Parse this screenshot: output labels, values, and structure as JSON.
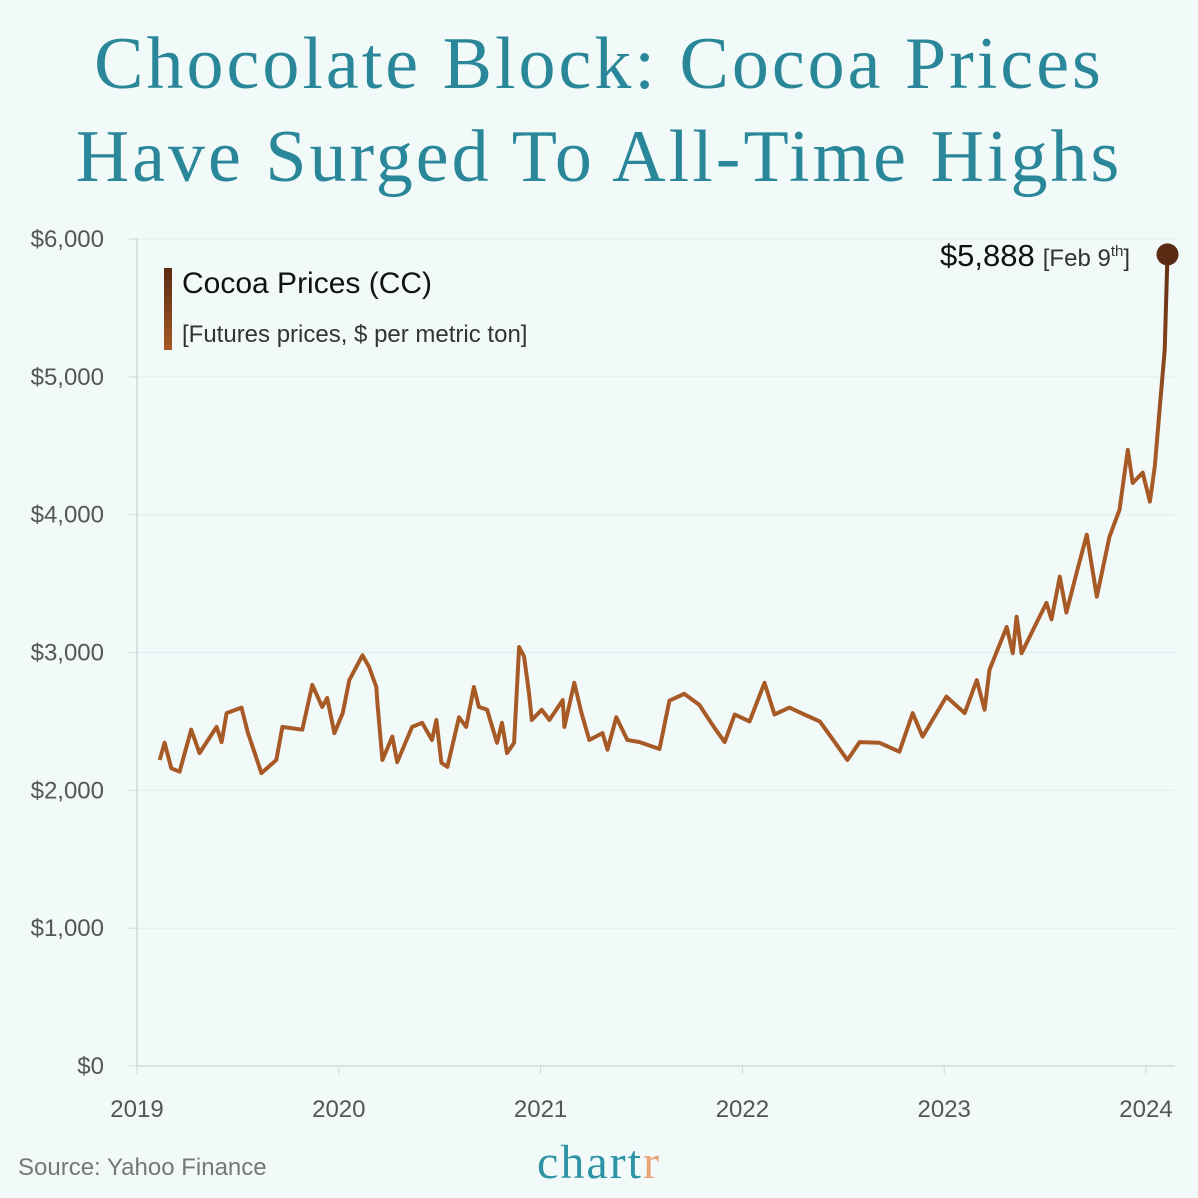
{
  "title_lines": [
    "Chocolate Block: Cocoa Prices",
    "Have Surged To All-Time Highs"
  ],
  "legend": {
    "label": "Cocoa Prices (CC)",
    "sublabel": "[Futures prices, $ per metric ton]"
  },
  "annotation": {
    "value": "$5,888",
    "date_prefix": "[Feb 9",
    "date_sup": "th",
    "date_suffix": "]"
  },
  "source": "Source: Yahoo Finance",
  "logo": {
    "main": "chart",
    "accent": "r"
  },
  "colors": {
    "background": "#f1faf9",
    "title": "#2a8799",
    "line": "#a85a26",
    "line_top": "#5a2a12",
    "logo": "#2f93a6",
    "logo_accent": "#e8a27a"
  },
  "chart_data": {
    "type": "line",
    "title": "Chocolate Block: Cocoa Prices Have Surged To All-Time Highs",
    "xlabel": "",
    "ylabel": "",
    "ylim": [
      0,
      6000
    ],
    "xlim": [
      "2019-01-01",
      "2024-02-20"
    ],
    "y_ticks": [
      "$0",
      "$1,000",
      "$2,000",
      "$3,000",
      "$4,000",
      "$5,000",
      "$6,000"
    ],
    "x_ticks": [
      "2019",
      "2020",
      "2021",
      "2022",
      "2023",
      "2024"
    ],
    "grid": "horizontal",
    "legend_position": "top-left",
    "series": [
      {
        "name": "Cocoa Prices (CC)",
        "points": [
          [
            "2019-02-11",
            2220
          ],
          [
            "2019-02-20",
            2345
          ],
          [
            "2019-03-04",
            2160
          ],
          [
            "2019-03-19",
            2135
          ],
          [
            "2019-04-09",
            2440
          ],
          [
            "2019-04-24",
            2270
          ],
          [
            "2019-05-25",
            2460
          ],
          [
            "2019-06-03",
            2350
          ],
          [
            "2019-06-12",
            2560
          ],
          [
            "2019-07-09",
            2600
          ],
          [
            "2019-07-20",
            2425
          ],
          [
            "2019-08-14",
            2125
          ],
          [
            "2019-09-10",
            2220
          ],
          [
            "2019-09-21",
            2460
          ],
          [
            "2019-10-27",
            2440
          ],
          [
            "2019-11-14",
            2765
          ],
          [
            "2019-12-02",
            2605
          ],
          [
            "2019-12-11",
            2670
          ],
          [
            "2019-12-24",
            2415
          ],
          [
            "2020-01-08",
            2560
          ],
          [
            "2020-01-20",
            2800
          ],
          [
            "2020-02-13",
            2980
          ],
          [
            "2020-02-25",
            2895
          ],
          [
            "2020-03-09",
            2750
          ],
          [
            "2020-03-11",
            2635
          ],
          [
            "2020-03-20",
            2220
          ],
          [
            "2020-04-07",
            2390
          ],
          [
            "2020-04-16",
            2205
          ],
          [
            "2020-05-13",
            2460
          ],
          [
            "2020-05-31",
            2490
          ],
          [
            "2020-06-18",
            2365
          ],
          [
            "2020-06-26",
            2510
          ],
          [
            "2020-07-05",
            2200
          ],
          [
            "2020-07-16",
            2170
          ],
          [
            "2020-08-06",
            2530
          ],
          [
            "2020-08-19",
            2460
          ],
          [
            "2020-09-02",
            2750
          ],
          [
            "2020-09-11",
            2605
          ],
          [
            "2020-09-26",
            2585
          ],
          [
            "2020-10-14",
            2345
          ],
          [
            "2020-10-23",
            2490
          ],
          [
            "2020-11-01",
            2270
          ],
          [
            "2020-11-14",
            2345
          ],
          [
            "2020-11-23",
            3040
          ],
          [
            "2020-12-02",
            2970
          ],
          [
            "2020-12-11",
            2705
          ],
          [
            "2020-12-16",
            2510
          ],
          [
            "2021-01-03",
            2585
          ],
          [
            "2021-01-17",
            2510
          ],
          [
            "2021-02-10",
            2655
          ],
          [
            "2021-02-13",
            2460
          ],
          [
            "2021-03-03",
            2780
          ],
          [
            "2021-03-16",
            2560
          ],
          [
            "2021-03-30",
            2365
          ],
          [
            "2021-04-23",
            2415
          ],
          [
            "2021-05-02",
            2295
          ],
          [
            "2021-05-18",
            2530
          ],
          [
            "2021-06-07",
            2365
          ],
          [
            "2021-06-29",
            2350
          ],
          [
            "2021-08-04",
            2300
          ],
          [
            "2021-08-22",
            2650
          ],
          [
            "2021-09-18",
            2700
          ],
          [
            "2021-10-15",
            2620
          ],
          [
            "2021-11-12",
            2450
          ],
          [
            "2021-11-30",
            2350
          ],
          [
            "2021-12-18",
            2550
          ],
          [
            "2022-01-14",
            2500
          ],
          [
            "2022-02-10",
            2780
          ],
          [
            "2022-02-28",
            2550
          ],
          [
            "2022-03-27",
            2600
          ],
          [
            "2022-04-23",
            2550
          ],
          [
            "2022-05-21",
            2500
          ],
          [
            "2022-06-17",
            2350
          ],
          [
            "2022-07-10",
            2220
          ],
          [
            "2022-08-01",
            2350
          ],
          [
            "2022-09-06",
            2345
          ],
          [
            "2022-10-12",
            2280
          ],
          [
            "2022-11-05",
            2560
          ],
          [
            "2022-11-23",
            2390
          ],
          [
            "2023-01-05",
            2680
          ],
          [
            "2023-02-07",
            2560
          ],
          [
            "2023-03-01",
            2800
          ],
          [
            "2023-03-15",
            2585
          ],
          [
            "2023-03-24",
            2875
          ],
          [
            "2023-04-24",
            3185
          ],
          [
            "2023-05-05",
            2995
          ],
          [
            "2023-05-12",
            3260
          ],
          [
            "2023-05-21",
            2995
          ],
          [
            "2023-06-17",
            3215
          ],
          [
            "2023-07-05",
            3360
          ],
          [
            "2023-07-14",
            3240
          ],
          [
            "2023-07-29",
            3550
          ],
          [
            "2023-08-10",
            3290
          ],
          [
            "2023-08-30",
            3600
          ],
          [
            "2023-09-16",
            3855
          ],
          [
            "2023-10-04",
            3405
          ],
          [
            "2023-10-27",
            3840
          ],
          [
            "2023-11-14",
            4035
          ],
          [
            "2023-11-29",
            4470
          ],
          [
            "2023-12-08",
            4230
          ],
          [
            "2023-12-26",
            4305
          ],
          [
            "2024-01-08",
            4095
          ],
          [
            "2024-01-17",
            4350
          ],
          [
            "2024-01-26",
            4780
          ],
          [
            "2024-02-04",
            5195
          ],
          [
            "2024-02-09",
            5888
          ]
        ]
      }
    ],
    "annotations": [
      {
        "x": "2024-02-09",
        "y": 5888,
        "text": "$5,888 [Feb 9th]"
      }
    ]
  }
}
